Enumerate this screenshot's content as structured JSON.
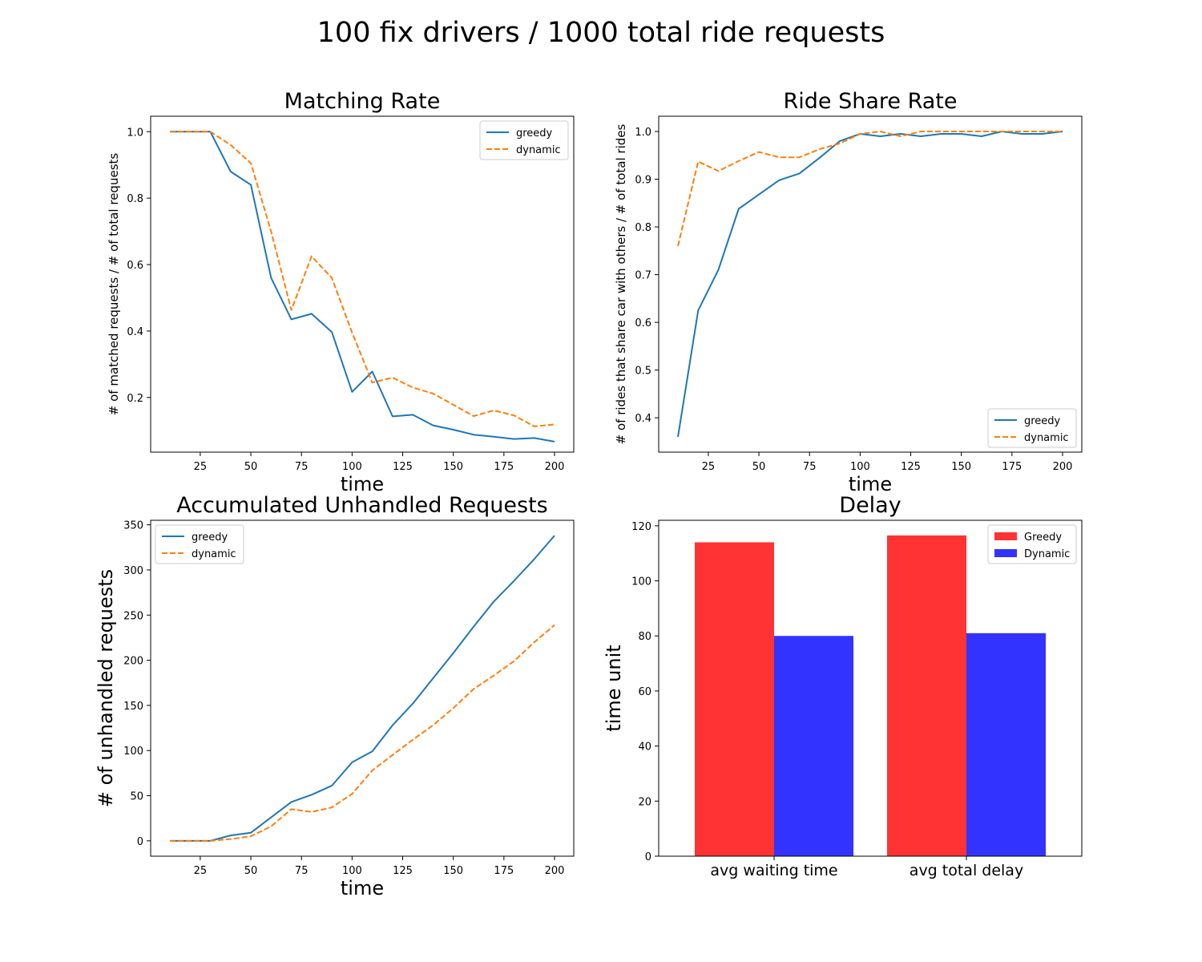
{
  "figure": {
    "title": "100 fix drivers / 1000 total ride requests"
  },
  "chart_data": [
    {
      "type": "line",
      "title": "Matching Rate",
      "xlabel": "time",
      "ylabel": "# of matched requests / # of total requests",
      "xlim": [
        0.5,
        209.5
      ],
      "ylim": [
        0.0355,
        1.0465
      ],
      "xticks": [
        25,
        50,
        75,
        100,
        125,
        150,
        175,
        200
      ],
      "yticks": [
        0.2,
        0.4,
        0.6,
        0.8,
        1.0
      ],
      "ytick_labels": [
        "0.2",
        "0.4",
        "0.6",
        "0.8",
        "1.0"
      ],
      "grid": false,
      "legend": "top-right",
      "x": [
        10,
        20,
        30,
        40,
        50,
        60,
        70,
        80,
        90,
        100,
        110,
        120,
        130,
        140,
        150,
        160,
        170,
        180,
        190,
        200
      ],
      "series": [
        {
          "name": "greedy",
          "color": "#1f77b4",
          "dash": "solid",
          "values": [
            1.0,
            1.0,
            1.0,
            0.88,
            0.84,
            0.56,
            0.435,
            0.452,
            0.397,
            0.217,
            0.278,
            0.143,
            0.148,
            0.116,
            0.103,
            0.088,
            0.082,
            0.075,
            0.078,
            0.067
          ]
        },
        {
          "name": "dynamic",
          "color": "#ff7f0e",
          "dash": "dashed",
          "values": [
            1.0,
            1.0,
            1.0,
            0.96,
            0.905,
            0.7,
            0.463,
            0.625,
            0.56,
            0.395,
            0.245,
            0.26,
            0.23,
            0.212,
            0.178,
            0.144,
            0.161,
            0.146,
            0.113,
            0.119
          ]
        }
      ]
    },
    {
      "type": "line",
      "title": "Ride Share Rate",
      "xlabel": "time",
      "ylabel": "# of rides that share car with others / # of total rides",
      "xlim": [
        0.5,
        209.5
      ],
      "ylim": [
        0.328,
        1.032
      ],
      "xticks": [
        25,
        50,
        75,
        100,
        125,
        150,
        175,
        200
      ],
      "yticks": [
        0.4,
        0.5,
        0.6,
        0.7,
        0.8,
        0.9,
        1.0
      ],
      "ytick_labels": [
        "0.4",
        "0.5",
        "0.6",
        "0.7",
        "0.8",
        "0.9",
        "1.0"
      ],
      "grid": false,
      "legend": "bottom-right",
      "x": [
        10,
        20,
        30,
        40,
        50,
        60,
        70,
        80,
        90,
        100,
        110,
        120,
        130,
        140,
        150,
        160,
        170,
        180,
        190,
        200
      ],
      "series": [
        {
          "name": "greedy",
          "color": "#1f77b4",
          "dash": "solid",
          "values": [
            0.36,
            0.625,
            0.71,
            0.838,
            0.868,
            0.898,
            0.912,
            0.945,
            0.98,
            0.995,
            0.99,
            0.995,
            0.99,
            0.995,
            0.995,
            0.99,
            1.0,
            0.995,
            0.995,
            1.0
          ]
        },
        {
          "name": "dynamic",
          "color": "#ff7f0e",
          "dash": "dashed",
          "values": [
            0.76,
            0.937,
            0.917,
            0.938,
            0.957,
            0.946,
            0.946,
            0.963,
            0.975,
            0.995,
            1.0,
            0.99,
            1.0,
            1.0,
            1.0,
            1.0,
            1.0,
            1.0,
            1.0,
            1.0
          ]
        }
      ]
    },
    {
      "type": "line",
      "title": "Accumulated Unhandled Requests",
      "xlabel": "time",
      "ylabel": "# of unhandled requests",
      "xlim": [
        0.5,
        209.5
      ],
      "ylim": [
        -17,
        355
      ],
      "xticks": [
        25,
        50,
        75,
        100,
        125,
        150,
        175,
        200
      ],
      "yticks": [
        0,
        50,
        100,
        150,
        200,
        250,
        300,
        350
      ],
      "ytick_labels": [
        "0",
        "50",
        "100",
        "150",
        "200",
        "250",
        "300",
        "350"
      ],
      "grid": false,
      "legend": "top-left",
      "x": [
        10,
        20,
        30,
        40,
        50,
        60,
        70,
        80,
        90,
        100,
        110,
        120,
        130,
        140,
        150,
        160,
        170,
        180,
        190,
        200
      ],
      "series": [
        {
          "name": "greedy",
          "color": "#1f77b4",
          "dash": "solid",
          "values": [
            0,
            0,
            0,
            6,
            9,
            26,
            43,
            51,
            61,
            87,
            99,
            128,
            152,
            180,
            208,
            237,
            265,
            288,
            312,
            338
          ]
        },
        {
          "name": "dynamic",
          "color": "#ff7f0e",
          "dash": "dashed",
          "values": [
            0,
            0,
            0,
            2,
            5,
            16,
            35,
            32,
            37,
            52,
            78,
            95,
            112,
            128,
            147,
            168,
            183,
            199,
            220,
            239
          ]
        }
      ]
    },
    {
      "type": "bar",
      "title": "Delay",
      "xlabel": "",
      "ylabel": "time unit",
      "ylim": [
        0,
        122
      ],
      "yticks": [
        0,
        20,
        40,
        60,
        80,
        100,
        120
      ],
      "ytick_labels": [
        "0",
        "20",
        "40",
        "60",
        "80",
        "100",
        "120"
      ],
      "grid": false,
      "legend": "top-right",
      "categories": [
        "avg waiting time",
        "avg total delay"
      ],
      "series": [
        {
          "name": "Greedy",
          "color": "#ff3333",
          "values": [
            114,
            116.5
          ]
        },
        {
          "name": "Dynamic",
          "color": "#3333ff",
          "values": [
            80,
            81
          ]
        }
      ]
    }
  ]
}
